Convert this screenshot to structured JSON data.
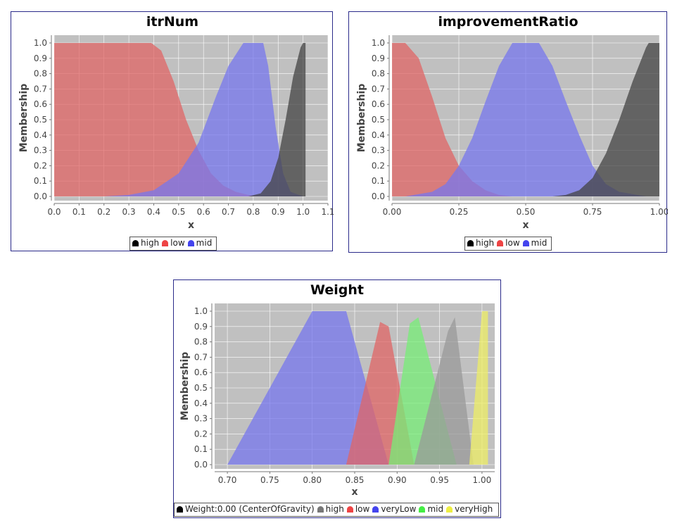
{
  "chart_data": [
    {
      "type": "area",
      "title": "itrNum",
      "xlabel": "x",
      "ylabel": "Membership",
      "xlim": [
        0.0,
        1.1
      ],
      "ylim": [
        0.0,
        1.0
      ],
      "xticks": [
        "0.0",
        "0.1",
        "0.2",
        "0.3",
        "0.4",
        "0.5",
        "0.6",
        "0.7",
        "0.8",
        "0.9",
        "1.0",
        "1.1"
      ],
      "yticks": [
        "0.0",
        "0.1",
        "0.2",
        "0.3",
        "0.4",
        "0.5",
        "0.6",
        "0.7",
        "0.8",
        "0.9",
        "1.0"
      ],
      "series": [
        {
          "name": "low",
          "color": "#e06666",
          "points": [
            [
              0.0,
              1.0
            ],
            [
              0.39,
              1.0
            ],
            [
              0.43,
              0.95
            ],
            [
              0.48,
              0.75
            ],
            [
              0.53,
              0.5
            ],
            [
              0.58,
              0.3
            ],
            [
              0.63,
              0.15
            ],
            [
              0.68,
              0.07
            ],
            [
              0.73,
              0.03
            ],
            [
              0.78,
              0.01
            ],
            [
              0.83,
              0.0
            ]
          ]
        },
        {
          "name": "mid",
          "color": "#7777ee",
          "points": [
            [
              0.0,
              0.0
            ],
            [
              0.2,
              0.0
            ],
            [
              0.3,
              0.01
            ],
            [
              0.4,
              0.04
            ],
            [
              0.5,
              0.15
            ],
            [
              0.58,
              0.35
            ],
            [
              0.65,
              0.65
            ],
            [
              0.7,
              0.85
            ],
            [
              0.76,
              1.0
            ],
            [
              0.84,
              1.0
            ],
            [
              0.86,
              0.85
            ],
            [
              0.89,
              0.45
            ],
            [
              0.92,
              0.15
            ],
            [
              0.95,
              0.03
            ],
            [
              1.0,
              0.0
            ]
          ]
        },
        {
          "name": "high",
          "color": "#444444",
          "points": [
            [
              0.78,
              0.0
            ],
            [
              0.83,
              0.02
            ],
            [
              0.87,
              0.1
            ],
            [
              0.9,
              0.25
            ],
            [
              0.93,
              0.5
            ],
            [
              0.96,
              0.78
            ],
            [
              0.99,
              0.97
            ],
            [
              1.0,
              1.0
            ],
            [
              1.01,
              1.0
            ],
            [
              1.01,
              0.0
            ]
          ]
        }
      ],
      "legend": [
        {
          "name": "high",
          "color": "#000000"
        },
        {
          "name": "low",
          "color": "#ee4444"
        },
        {
          "name": "mid",
          "color": "#4444ee"
        }
      ]
    },
    {
      "type": "area",
      "title": "improvementRatio",
      "xlabel": "x",
      "ylabel": "Membership",
      "xlim": [
        0.0,
        1.0
      ],
      "ylim": [
        0.0,
        1.0
      ],
      "xticks": [
        "0.00",
        "0.25",
        "0.50",
        "0.75",
        "1.00"
      ],
      "yticks": [
        "0.0",
        "0.1",
        "0.2",
        "0.3",
        "0.4",
        "0.5",
        "0.6",
        "0.7",
        "0.8",
        "0.9",
        "1.0"
      ],
      "series": [
        {
          "name": "low",
          "color": "#e06666",
          "points": [
            [
              0.0,
              1.0
            ],
            [
              0.05,
              1.0
            ],
            [
              0.1,
              0.9
            ],
            [
              0.15,
              0.65
            ],
            [
              0.2,
              0.38
            ],
            [
              0.25,
              0.2
            ],
            [
              0.3,
              0.1
            ],
            [
              0.35,
              0.04
            ],
            [
              0.4,
              0.01
            ],
            [
              0.45,
              0.0
            ]
          ]
        },
        {
          "name": "mid",
          "color": "#7777ee",
          "points": [
            [
              0.05,
              0.0
            ],
            [
              0.15,
              0.03
            ],
            [
              0.2,
              0.08
            ],
            [
              0.25,
              0.2
            ],
            [
              0.3,
              0.38
            ],
            [
              0.35,
              0.62
            ],
            [
              0.4,
              0.85
            ],
            [
              0.45,
              1.0
            ],
            [
              0.55,
              1.0
            ],
            [
              0.6,
              0.85
            ],
            [
              0.65,
              0.62
            ],
            [
              0.7,
              0.4
            ],
            [
              0.75,
              0.2
            ],
            [
              0.8,
              0.08
            ],
            [
              0.85,
              0.03
            ],
            [
              0.95,
              0.0
            ]
          ]
        },
        {
          "name": "high",
          "color": "#444444",
          "points": [
            [
              0.6,
              0.0
            ],
            [
              0.65,
              0.01
            ],
            [
              0.7,
              0.04
            ],
            [
              0.75,
              0.12
            ],
            [
              0.8,
              0.28
            ],
            [
              0.85,
              0.5
            ],
            [
              0.9,
              0.75
            ],
            [
              0.95,
              0.97
            ],
            [
              0.96,
              1.0
            ],
            [
              1.0,
              1.0
            ],
            [
              1.0,
              0.0
            ]
          ]
        }
      ],
      "legend": [
        {
          "name": "high",
          "color": "#000000"
        },
        {
          "name": "low",
          "color": "#ee4444"
        },
        {
          "name": "mid",
          "color": "#4444ee"
        }
      ]
    },
    {
      "type": "area",
      "title": "Weight",
      "xlabel": "x",
      "ylabel": "Membership",
      "xlim": [
        0.685,
        1.015
      ],
      "ylim": [
        0.0,
        1.0
      ],
      "xticks": [
        "0.70",
        "0.75",
        "0.80",
        "0.85",
        "0.90",
        "0.95",
        "1.00"
      ],
      "yticks": [
        "0.0",
        "0.1",
        "0.2",
        "0.3",
        "0.4",
        "0.5",
        "0.6",
        "0.7",
        "0.8",
        "0.9",
        "1.0"
      ],
      "series": [
        {
          "name": "veryLow",
          "color": "#7777ee",
          "points": [
            [
              0.7,
              0.0
            ],
            [
              0.8,
              1.0
            ],
            [
              0.84,
              1.0
            ],
            [
              0.89,
              0.0
            ]
          ]
        },
        {
          "name": "low",
          "color": "#e06666",
          "points": [
            [
              0.84,
              0.0
            ],
            [
              0.88,
              0.93
            ],
            [
              0.89,
              0.9
            ],
            [
              0.92,
              0.0
            ]
          ]
        },
        {
          "name": "mid",
          "color": "#77ee77",
          "points": [
            [
              0.89,
              0.0
            ],
            [
              0.915,
              0.92
            ],
            [
              0.925,
              0.96
            ],
            [
              0.97,
              0.0
            ]
          ]
        },
        {
          "name": "high",
          "color": "#999999",
          "points": [
            [
              0.92,
              0.0
            ],
            [
              0.96,
              0.87
            ],
            [
              0.968,
              0.96
            ],
            [
              0.99,
              0.0
            ]
          ]
        },
        {
          "name": "veryHigh",
          "color": "#eeee66",
          "points": [
            [
              0.985,
              0.0
            ],
            [
              1.0,
              1.0
            ],
            [
              1.007,
              1.0
            ],
            [
              1.007,
              0.0
            ]
          ]
        }
      ],
      "legend": [
        {
          "name": "Weight:0.00 (CenterOfGravity)",
          "color": "#000000"
        },
        {
          "name": "high",
          "color": "#777777"
        },
        {
          "name": "low",
          "color": "#ee4444"
        },
        {
          "name": "veryLow",
          "color": "#4444ee"
        },
        {
          "name": "mid",
          "color": "#44ee44"
        },
        {
          "name": "veryHigh",
          "color": "#eeee44"
        }
      ]
    }
  ]
}
